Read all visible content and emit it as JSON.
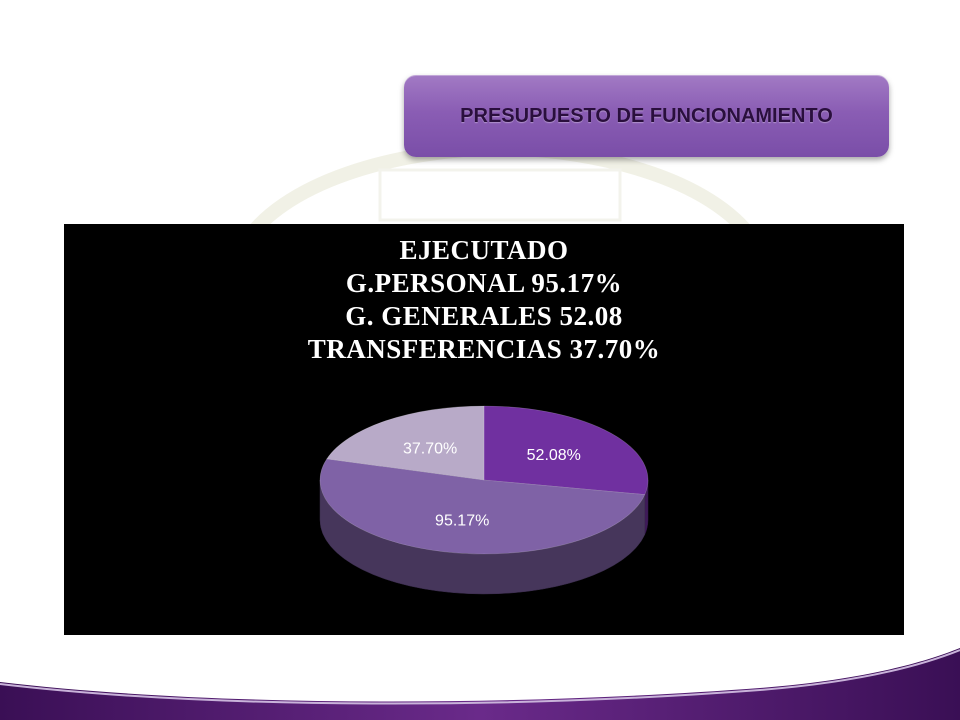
{
  "slide": {
    "title": "PRESUPUESTO DE FUNCIONAMIENTO"
  },
  "chart_data": {
    "type": "pie",
    "title_lines": [
      "EJECUTADO",
      "G.PERSONAL 95.17%",
      "G. GENERALES 52.08",
      "TRANSFERENCIAS 37.70%"
    ],
    "categories": [
      "G. GENERALES",
      "G.PERSONAL",
      "TRANSFERENCIAS"
    ],
    "values": [
      52.08,
      95.17,
      37.7
    ],
    "data_labels": [
      "52.08%",
      "95.17%",
      "37.70%"
    ],
    "colors": [
      "#7030a0",
      "#7f62a6",
      "#b8aac8"
    ],
    "three_d": true
  },
  "colors": {
    "title_box": "#8a5db4",
    "chart_background": "#000000",
    "accent": "#5b1a7a"
  }
}
